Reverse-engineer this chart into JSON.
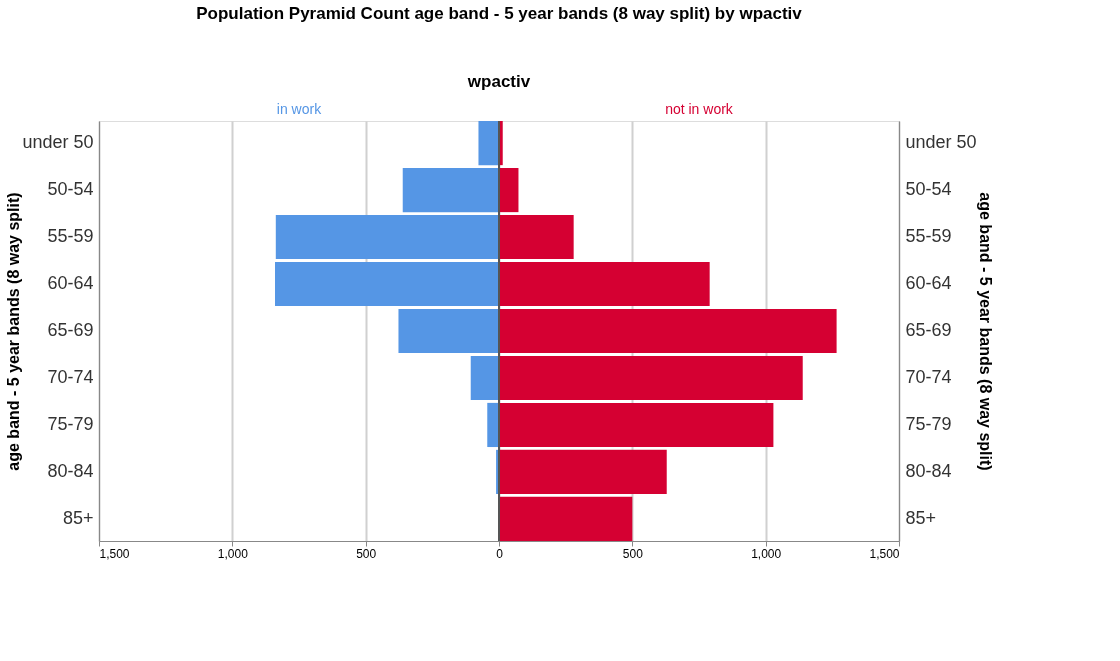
{
  "chart_data": {
    "type": "bar",
    "orientation": "horizontal",
    "title": "Population Pyramid Count age band - 5 year bands  (8 way split)  by wpactiv",
    "legend_title": "wpactiv",
    "ylabel": "age band - 5 year bands  (8 way split)",
    "y2label": "age band - 5 year bands  (8 way split)",
    "categories": [
      "under 50",
      "50-54",
      "55-59",
      "60-64",
      "65-69",
      "70-74",
      "75-79",
      "80-84",
      "85+"
    ],
    "series": [
      {
        "name": "in work",
        "color": "#5596e5",
        "values": [
          -77,
          -361,
          -837,
          -840,
          -377,
          -106,
          -44,
          -11,
          null
        ]
      },
      {
        "name": "not in work",
        "color": "#d50032",
        "values": [
          14,
          73,
          280,
          790,
          1266,
          1139,
          1029,
          629,
          500
        ]
      }
    ],
    "xlim": [
      -1500,
      1500
    ],
    "xticks": [
      {
        "value": -1500,
        "label": "1,500"
      },
      {
        "value": -1000,
        "label": "1,000"
      },
      {
        "value": -500,
        "label": "500"
      },
      0,
      500,
      {
        "value": 1000,
        "label": "1,000"
      },
      {
        "value": 1500,
        "label": "1,500"
      }
    ],
    "ref_lines": [
      {
        "axis": "x",
        "value": 0,
        "color": "#555555"
      }
    ],
    "grid": "x",
    "stacked": true,
    "legend": "top"
  }
}
